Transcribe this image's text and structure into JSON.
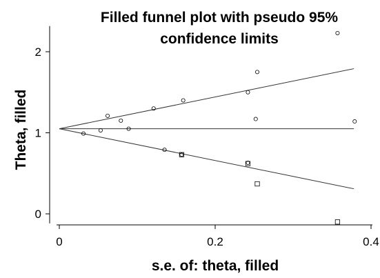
{
  "chart_data": {
    "type": "scatter",
    "title_lines": [
      "Filled funnel plot with pseudo 95%",
      "confidence limits"
    ],
    "xlabel": "s.e. of: theta, filled",
    "ylabel": "Theta, filled",
    "xlim": [
      0,
      0.4
    ],
    "ylim": [
      -0.1,
      2.3
    ],
    "x_ticks": [
      0,
      0.2,
      0.4
    ],
    "x_tick_labels": [
      "0",
      "0.2",
      "0.4"
    ],
    "y_ticks": [
      0,
      1,
      2
    ],
    "y_tick_labels": [
      "0",
      "1",
      "2"
    ],
    "grid": false,
    "pooled_estimate": 1.05,
    "funnel_se_max": 0.378,
    "series": [
      {
        "marker": "circle",
        "points": [
          {
            "x": 0.031,
            "y": 0.99
          },
          {
            "x": 0.053,
            "y": 1.03
          },
          {
            "x": 0.062,
            "y": 1.21
          },
          {
            "x": 0.079,
            "y": 1.15
          },
          {
            "x": 0.089,
            "y": 1.05
          },
          {
            "x": 0.121,
            "y": 1.3
          },
          {
            "x": 0.135,
            "y": 0.79
          },
          {
            "x": 0.157,
            "y": 0.73
          },
          {
            "x": 0.159,
            "y": 1.4
          },
          {
            "x": 0.242,
            "y": 1.5
          },
          {
            "x": 0.242,
            "y": 0.63
          },
          {
            "x": 0.252,
            "y": 1.17
          },
          {
            "x": 0.254,
            "y": 1.75
          },
          {
            "x": 0.357,
            "y": 2.23
          },
          {
            "x": 0.379,
            "y": 1.14
          }
        ]
      },
      {
        "marker": "square",
        "points": [
          {
            "x": 0.157,
            "y": 0.73
          },
          {
            "x": 0.242,
            "y": 0.62
          },
          {
            "x": 0.254,
            "y": 0.37
          },
          {
            "x": 0.357,
            "y": -0.1
          }
        ]
      }
    ]
  }
}
